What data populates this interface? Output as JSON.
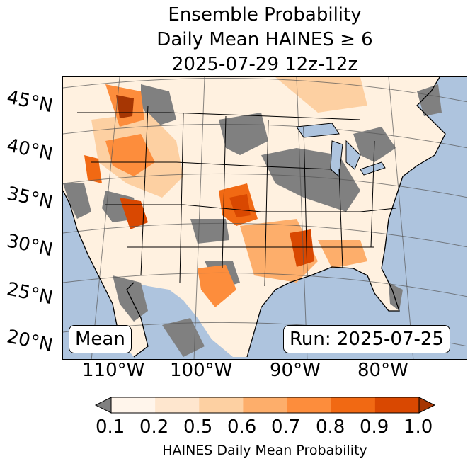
{
  "title": {
    "line1": "Ensemble Probability",
    "line2": "Daily Mean HAINES ≥ 6",
    "line3": "2025-07-29 12z-12z"
  },
  "map": {
    "latitude_labels": [
      "45°N",
      "40°N",
      "35°N",
      "30°N",
      "25°N",
      "20°N"
    ],
    "longitude_labels": [
      "110°W",
      "100°W",
      "90°W",
      "80°W"
    ],
    "stat_box": "Mean",
    "run_box": "Run: 2025-07-25",
    "ocean_color": "#aec4de",
    "land_low_color": "#808080"
  },
  "colorbar": {
    "ticks": [
      "0.1",
      "0.2",
      "0.5",
      "0.6",
      "0.7",
      "0.8",
      "0.9",
      "1.0"
    ],
    "colors": [
      "#fff5eb",
      "#fee6ce",
      "#fdd0a2",
      "#fdae6b",
      "#fd8d3c",
      "#f16913",
      "#d94801",
      "#a63603"
    ],
    "under_color": "#808080",
    "label": "HAINES Daily Mean Probability"
  }
}
